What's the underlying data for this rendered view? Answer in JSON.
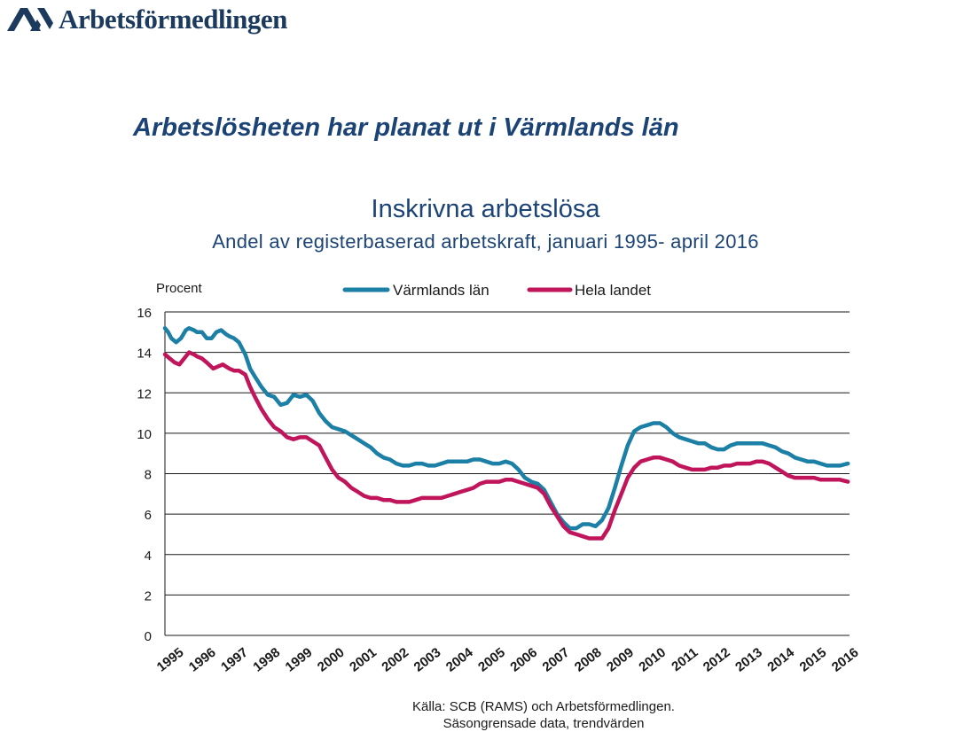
{
  "logo": {
    "text": "Arbetsförmedlingen",
    "icon": "af-chevron-logo-icon",
    "color": "#1b3a5e"
  },
  "headline": "Arbetslösheten har planat ut i Värmlands län",
  "colors": {
    "accent": "#1b4375",
    "varmland": "#1b7fa6",
    "riket": "#c0155b",
    "grid": "#1a1a1a"
  },
  "chart_data": {
    "type": "line",
    "title": "Inskrivna arbetslösa",
    "subtitle": "Andel av registerbaserad arbetskraft, januari 1995- april 2016",
    "ylabel": "Procent",
    "xlabel": "",
    "ylim": [
      0,
      16
    ],
    "yticks": [
      0,
      2,
      4,
      6,
      8,
      10,
      12,
      14,
      16
    ],
    "xlim": [
      1995,
      2016.3
    ],
    "xticks": [
      "1995",
      "1996",
      "1997",
      "1998",
      "1999",
      "2000",
      "2001",
      "2002",
      "2003",
      "2004",
      "2005",
      "2006",
      "2007",
      "2008",
      "2009",
      "2010",
      "2011",
      "2012",
      "2013",
      "2014",
      "2015",
      "2016"
    ],
    "grid": true,
    "legend": "top",
    "series": [
      {
        "name": "Värmlands län",
        "color": "#1b7fa6",
        "x": [
          1995.0,
          1995.1,
          1995.2,
          1995.35,
          1995.5,
          1995.65,
          1995.75,
          1995.9,
          1996.0,
          1996.15,
          1996.3,
          1996.45,
          1996.6,
          1996.75,
          1996.9,
          1997.0,
          1997.15,
          1997.3,
          1997.5,
          1997.65,
          1997.8,
          1998.0,
          1998.2,
          1998.4,
          1998.6,
          1998.8,
          1999.0,
          1999.2,
          1999.4,
          1999.6,
          1999.8,
          2000.0,
          2000.2,
          2000.4,
          2000.6,
          2000.8,
          2001.0,
          2001.2,
          2001.4,
          2001.6,
          2001.8,
          2002.0,
          2002.2,
          2002.4,
          2002.6,
          2002.8,
          2003.0,
          2003.2,
          2003.4,
          2003.6,
          2003.8,
          2004.0,
          2004.2,
          2004.4,
          2004.6,
          2004.8,
          2005.0,
          2005.2,
          2005.4,
          2005.6,
          2005.8,
          2006.0,
          2006.2,
          2006.4,
          2006.6,
          2006.8,
          2007.0,
          2007.2,
          2007.4,
          2007.6,
          2007.8,
          2008.0,
          2008.2,
          2008.4,
          2008.6,
          2008.8,
          2009.0,
          2009.2,
          2009.4,
          2009.6,
          2009.8,
          2010.0,
          2010.2,
          2010.4,
          2010.6,
          2010.8,
          2011.0,
          2011.2,
          2011.4,
          2011.6,
          2011.8,
          2012.0,
          2012.2,
          2012.4,
          2012.6,
          2012.8,
          2013.0,
          2013.2,
          2013.4,
          2013.6,
          2013.8,
          2014.0,
          2014.2,
          2014.4,
          2014.6,
          2014.8,
          2015.0,
          2015.2,
          2015.4,
          2015.6,
          2015.8,
          2016.0,
          2016.25
        ],
        "values": [
          15.2,
          15.0,
          14.7,
          14.5,
          14.7,
          15.1,
          15.2,
          15.1,
          15.0,
          15.0,
          14.7,
          14.7,
          15.0,
          15.1,
          14.9,
          14.8,
          14.7,
          14.5,
          13.9,
          13.2,
          12.8,
          12.3,
          11.9,
          11.8,
          11.4,
          11.5,
          11.9,
          11.8,
          11.9,
          11.6,
          11.0,
          10.6,
          10.3,
          10.2,
          10.1,
          9.9,
          9.7,
          9.5,
          9.3,
          9.0,
          8.8,
          8.7,
          8.5,
          8.4,
          8.4,
          8.5,
          8.5,
          8.4,
          8.4,
          8.5,
          8.6,
          8.6,
          8.6,
          8.6,
          8.7,
          8.7,
          8.6,
          8.5,
          8.5,
          8.6,
          8.5,
          8.2,
          7.8,
          7.6,
          7.5,
          7.2,
          6.6,
          6.0,
          5.6,
          5.3,
          5.3,
          5.5,
          5.5,
          5.4,
          5.7,
          6.3,
          7.3,
          8.4,
          9.4,
          10.1,
          10.3,
          10.4,
          10.5,
          10.5,
          10.3,
          10.0,
          9.8,
          9.7,
          9.6,
          9.5,
          9.5,
          9.3,
          9.2,
          9.2,
          9.4,
          9.5,
          9.5,
          9.5,
          9.5,
          9.5,
          9.4,
          9.3,
          9.1,
          9.0,
          8.8,
          8.7,
          8.6,
          8.6,
          8.5,
          8.4,
          8.4,
          8.4,
          8.5
        ]
      },
      {
        "name": "Hela landet",
        "color": "#c0155b",
        "x": [
          1995.0,
          1995.15,
          1995.3,
          1995.45,
          1995.6,
          1995.75,
          1995.9,
          1996.0,
          1996.15,
          1996.3,
          1996.5,
          1996.65,
          1996.8,
          1997.0,
          1997.15,
          1997.3,
          1997.5,
          1997.65,
          1997.8,
          1998.0,
          1998.2,
          1998.4,
          1998.6,
          1998.8,
          1999.0,
          1999.2,
          1999.4,
          1999.6,
          1999.8,
          2000.0,
          2000.2,
          2000.4,
          2000.6,
          2000.8,
          2001.0,
          2001.2,
          2001.4,
          2001.6,
          2001.8,
          2002.0,
          2002.2,
          2002.4,
          2002.6,
          2002.8,
          2003.0,
          2003.2,
          2003.4,
          2003.6,
          2003.8,
          2004.0,
          2004.2,
          2004.4,
          2004.6,
          2004.8,
          2005.0,
          2005.2,
          2005.4,
          2005.6,
          2005.8,
          2006.0,
          2006.2,
          2006.4,
          2006.6,
          2006.8,
          2007.0,
          2007.2,
          2007.4,
          2007.6,
          2007.8,
          2008.0,
          2008.2,
          2008.4,
          2008.6,
          2008.8,
          2009.0,
          2009.2,
          2009.4,
          2009.6,
          2009.8,
          2010.0,
          2010.2,
          2010.4,
          2010.6,
          2010.8,
          2011.0,
          2011.2,
          2011.4,
          2011.6,
          2011.8,
          2012.0,
          2012.2,
          2012.4,
          2012.6,
          2012.8,
          2013.0,
          2013.2,
          2013.4,
          2013.6,
          2013.8,
          2014.0,
          2014.2,
          2014.4,
          2014.6,
          2014.8,
          2015.0,
          2015.2,
          2015.4,
          2015.6,
          2015.8,
          2016.0,
          2016.25
        ],
        "values": [
          13.9,
          13.7,
          13.5,
          13.4,
          13.7,
          14.0,
          13.9,
          13.8,
          13.7,
          13.5,
          13.2,
          13.3,
          13.4,
          13.2,
          13.1,
          13.1,
          12.9,
          12.3,
          11.8,
          11.2,
          10.7,
          10.3,
          10.1,
          9.8,
          9.7,
          9.8,
          9.8,
          9.6,
          9.4,
          8.8,
          8.2,
          7.8,
          7.6,
          7.3,
          7.1,
          6.9,
          6.8,
          6.8,
          6.7,
          6.7,
          6.6,
          6.6,
          6.6,
          6.7,
          6.8,
          6.8,
          6.8,
          6.8,
          6.9,
          7.0,
          7.1,
          7.2,
          7.3,
          7.5,
          7.6,
          7.6,
          7.6,
          7.7,
          7.7,
          7.6,
          7.5,
          7.4,
          7.3,
          7.0,
          6.4,
          5.9,
          5.4,
          5.1,
          5.0,
          4.9,
          4.8,
          4.8,
          4.8,
          5.3,
          6.2,
          7.0,
          7.8,
          8.3,
          8.6,
          8.7,
          8.8,
          8.8,
          8.7,
          8.6,
          8.4,
          8.3,
          8.2,
          8.2,
          8.2,
          8.3,
          8.3,
          8.4,
          8.4,
          8.5,
          8.5,
          8.5,
          8.6,
          8.6,
          8.5,
          8.3,
          8.1,
          7.9,
          7.8,
          7.8,
          7.8,
          7.8,
          7.7,
          7.7,
          7.7,
          7.7,
          7.6
        ]
      }
    ]
  },
  "source": {
    "line1": "Källa: SCB (RAMS) och Arbetsförmedlingen.",
    "line2": "Säsongrensade data, trendvärden"
  }
}
